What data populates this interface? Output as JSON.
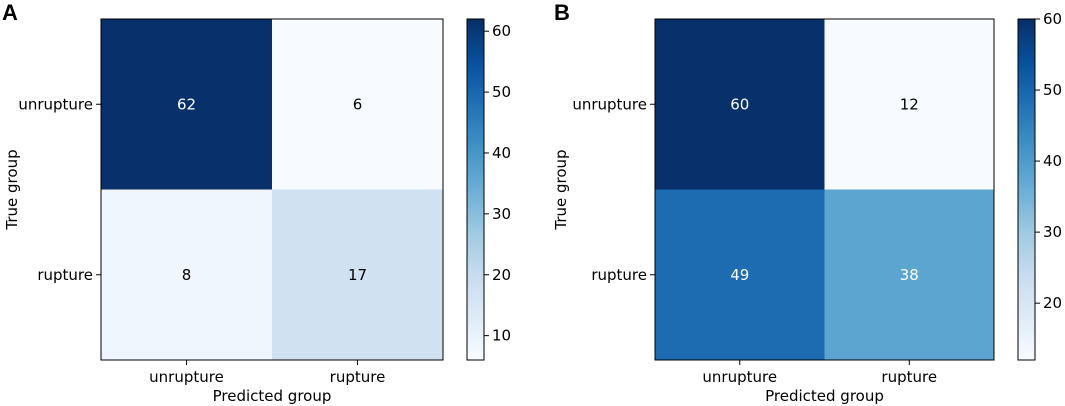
{
  "chart_data": [
    {
      "type": "heatmap",
      "panel_label": "A",
      "rows": [
        "unrupture",
        "rupture"
      ],
      "columns": [
        "unrupture",
        "rupture"
      ],
      "values": [
        [
          62,
          6
        ],
        [
          8,
          17
        ]
      ],
      "xlabel": "Predicted group",
      "ylabel": "True group",
      "colorbar": {
        "min": 6,
        "max": 62,
        "ticks": [
          10,
          20,
          30,
          40,
          50,
          60
        ],
        "colormap": "Blues"
      }
    },
    {
      "type": "heatmap",
      "panel_label": "B",
      "rows": [
        "unrupture",
        "rupture"
      ],
      "columns": [
        "unrupture",
        "rupture"
      ],
      "values": [
        [
          60,
          12
        ],
        [
          49,
          38
        ]
      ],
      "xlabel": "Predicted group",
      "ylabel": "True group",
      "colorbar": {
        "min": 12,
        "max": 60,
        "ticks": [
          20,
          30,
          40,
          50,
          60
        ],
        "colormap": "Blues"
      }
    }
  ]
}
